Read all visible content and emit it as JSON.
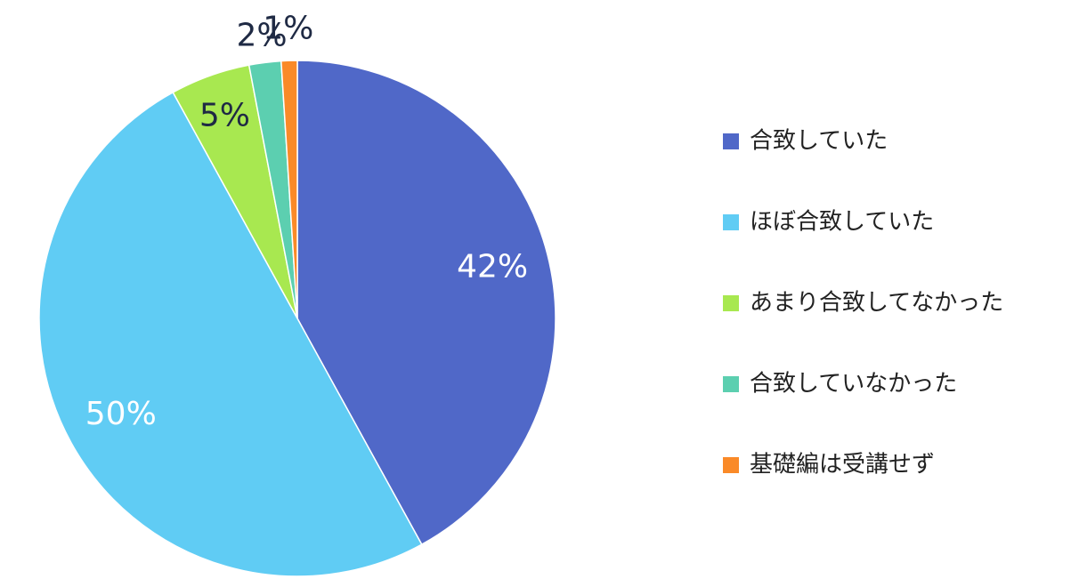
{
  "chart_data": {
    "type": "pie",
    "categories": [
      "合致していた",
      "ほぼ合致していた",
      "あまり合致してなかった",
      "合致していなかった",
      "基礎編は受講せず"
    ],
    "values": [
      42,
      50,
      5,
      2,
      1
    ],
    "value_labels": [
      "42%",
      "50%",
      "5%",
      "2%",
      "1%"
    ],
    "colors": [
      "#5068c8",
      "#60ccf4",
      "#a8e850",
      "#5ccfb0",
      "#fa8a28"
    ],
    "legend": "right"
  }
}
